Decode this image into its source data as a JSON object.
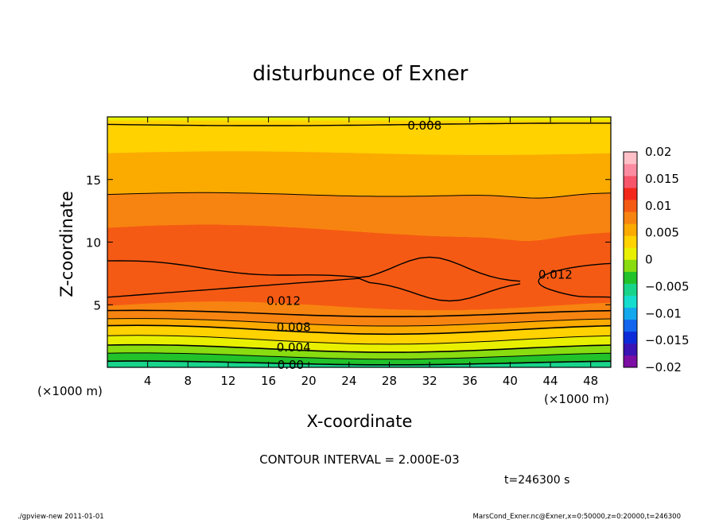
{
  "chart_data": {
    "type": "contour",
    "title": "disturbunce of Exner",
    "xlabel": "X-coordinate",
    "ylabel": "Z-coordinate",
    "x_unit": "(×1000 m)",
    "y_unit": "(×1000 m)",
    "xlim": [
      0,
      50
    ],
    "ylim": [
      0,
      20
    ],
    "x_ticks": [
      4,
      8,
      12,
      16,
      20,
      24,
      28,
      32,
      36,
      40,
      44,
      48
    ],
    "y_ticks": [
      5,
      10,
      15
    ],
    "contour_interval_text": "CONTOUR INTERVAL = 2.000E-03",
    "time_text": "t=246300 s",
    "colorbar_ticks": [
      "0.02",
      "0.015",
      "0.01",
      "0.005",
      "0",
      "−0.005",
      "−0.01",
      "−0.015",
      "−0.02"
    ],
    "colorbar_range": [
      -0.02,
      0.02
    ],
    "colorbar_step": 0.0025,
    "contour_labels": [
      {
        "text": "0.008",
        "x": 31.5,
        "z": 19.3
      },
      {
        "text": "0.012",
        "x": 44.5,
        "z": 7.4
      },
      {
        "text": "0.012",
        "x": 17.5,
        "z": 5.3
      },
      {
        "text": "0.008",
        "x": 18.5,
        "z": 3.2
      },
      {
        "text": "0.004",
        "x": 18.5,
        "z": 1.6
      },
      {
        "text": "0.00",
        "x": 18.2,
        "z": 0.2
      }
    ],
    "grid": false
  },
  "footer": {
    "left": "./gpview-new  2011-01-01",
    "right": "MarsCond_Exner.nc@Exner,x=0:50000,z=0:20000,t=246300"
  },
  "colors": {
    "levels": [
      "#7c0ea4",
      "#3a14b4",
      "#0c2bd8",
      "#1266ee",
      "#12a8ee",
      "#14ddcd",
      "#18d48a",
      "#22c22a",
      "#88dc10",
      "#e8f000",
      "#ffd200",
      "#fbaa00",
      "#f78410",
      "#f55a14",
      "#f3281a",
      "#f7556a",
      "#fb8ba0",
      "#ffc0c8"
    ]
  }
}
